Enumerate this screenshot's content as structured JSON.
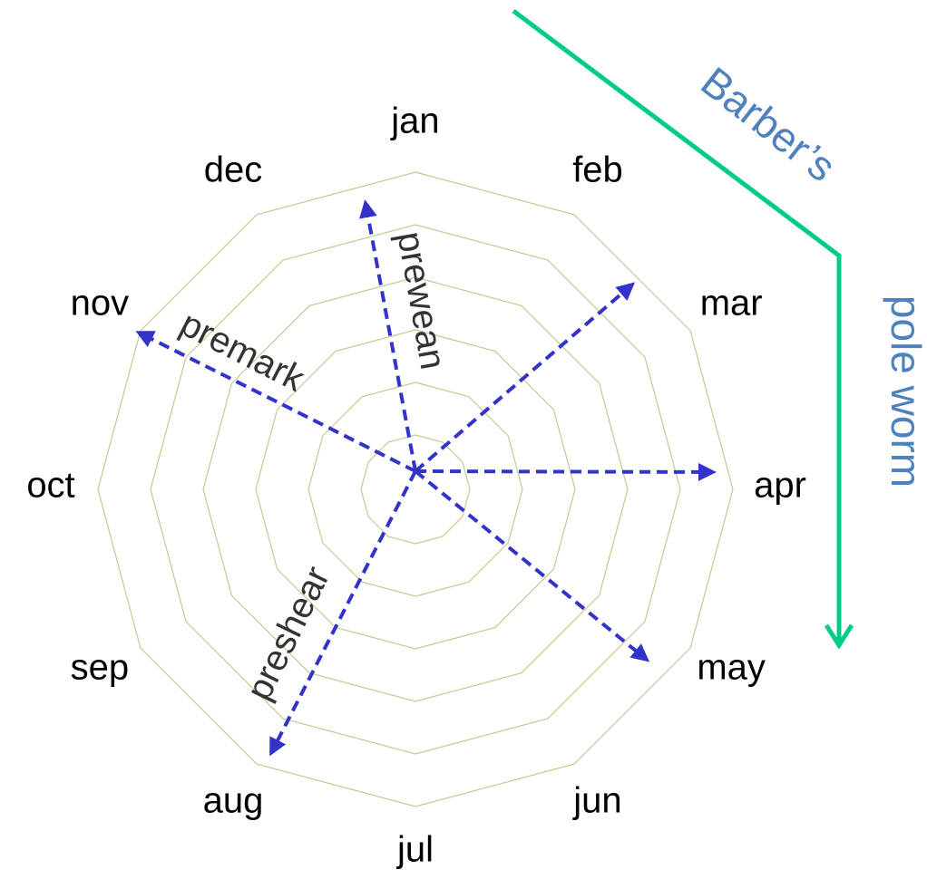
{
  "months": [
    "jan",
    "feb",
    "mar",
    "apr",
    "may",
    "jun",
    "jul",
    "aug",
    "sep",
    "oct",
    "nov",
    "dec"
  ],
  "arrow_labels": [
    "prewean",
    "premark",
    "preshear"
  ],
  "side_labels": [
    "Barber’s",
    "pole worm"
  ]
}
